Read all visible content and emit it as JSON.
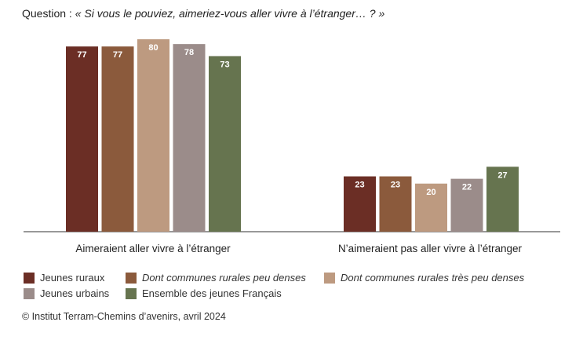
{
  "question": {
    "prefix": "Question :",
    "text": "« Si vous le pouviez, aimeriez-vous aller vivre à l’étranger… ? »"
  },
  "chart_data": {
    "type": "bar",
    "categories": [
      "Aimeraient aller vivre à l’étranger",
      "N’aimeraient pas aller vivre à l’étranger"
    ],
    "series": [
      {
        "name": "Jeunes ruraux",
        "values": [
          77,
          23
        ],
        "color": "#6b2e25",
        "italic": false
      },
      {
        "name": "Dont communes rurales peu denses",
        "values": [
          77,
          23
        ],
        "color": "#8b5a3c",
        "italic": true
      },
      {
        "name": "Dont communes rurales très peu denses",
        "values": [
          80,
          20
        ],
        "color": "#bd9a80",
        "italic": true
      },
      {
        "name": "Jeunes urbains",
        "values": [
          78,
          22
        ],
        "color": "#9b8c8a",
        "italic": false
      },
      {
        "name": "Ensemble des jeunes Français",
        "values": [
          73,
          27
        ],
        "color": "#66744f",
        "italic": false
      }
    ],
    "ylim": [
      0,
      80
    ],
    "grid": false,
    "legend_position": "bottom"
  },
  "source": "© Institut Terram-Chemins d’avenirs, avril 2024"
}
